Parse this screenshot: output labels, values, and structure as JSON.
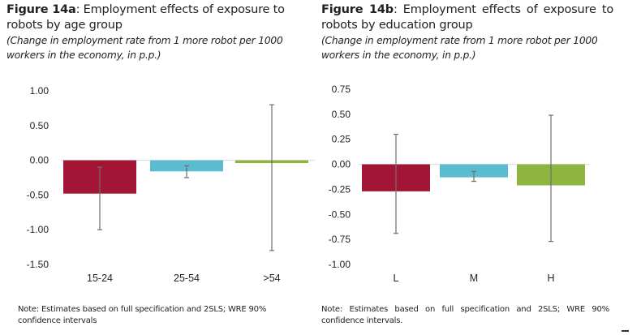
{
  "colors": {
    "crimson": "#a31535",
    "cyan": "#5bbcd0",
    "green": "#8db53f",
    "errorbar": "#6e6e6e",
    "zeroline": "#d9d9d9"
  },
  "chart_data": [
    {
      "type": "bar",
      "figure_label": "Figure 14a",
      "title": ": Employment effects of exposure to robots by age group",
      "subtitle": "(Change in employment rate from 1 more robot per 1000 workers in the economy, in p.p.)",
      "categories": [
        "15-24",
        "25-54",
        ">54"
      ],
      "values": [
        -0.48,
        -0.16,
        -0.04
      ],
      "error_low": [
        -1.0,
        -0.25,
        -1.3
      ],
      "error_high": [
        -0.1,
        -0.08,
        0.8
      ],
      "bar_colors": [
        "#a31535",
        "#5bbcd0",
        "#8db53f"
      ],
      "yticks": [
        "1.00",
        "0.50",
        "0.00",
        "-0.50",
        "-1.00",
        "-1.50"
      ],
      "ytick_values": [
        1.0,
        0.5,
        0.0,
        -0.5,
        -1.0,
        -1.5
      ],
      "ylim": [
        -1.5,
        1.0
      ],
      "xlabel": "",
      "ylabel": "",
      "grid": false,
      "note": "Note: Estimates based on full specification and 2SLS; WRE 90% confidence intervals"
    },
    {
      "type": "bar",
      "figure_label": "Figure 14b",
      "title": ": Employment effects of exposure to robots by education group",
      "subtitle": "(Change in employment rate from 1 more robot per 1000 workers in the economy, in p.p.)",
      "categories": [
        "L",
        "M",
        "H"
      ],
      "values": [
        -0.27,
        -0.13,
        -0.21
      ],
      "error_low": [
        -0.69,
        -0.17,
        -0.77
      ],
      "error_high": [
        0.3,
        -0.07,
        0.49
      ],
      "bar_colors": [
        "#a31535",
        "#5bbcd0",
        "#8db53f"
      ],
      "yticks": [
        "0.75",
        "0.50",
        "0.25",
        "0.00",
        "-0.25",
        "-0.50",
        "-0.75",
        "-1.00"
      ],
      "ytick_values": [
        0.75,
        0.5,
        0.25,
        0.0,
        -0.25,
        -0.5,
        -0.75,
        -1.0
      ],
      "ylim": [
        -1.0,
        0.75
      ],
      "xlabel": "",
      "ylabel": "",
      "grid": false,
      "note": "Note: Estimates based on full specification and 2SLS; WRE 90% confidence intervals."
    }
  ]
}
